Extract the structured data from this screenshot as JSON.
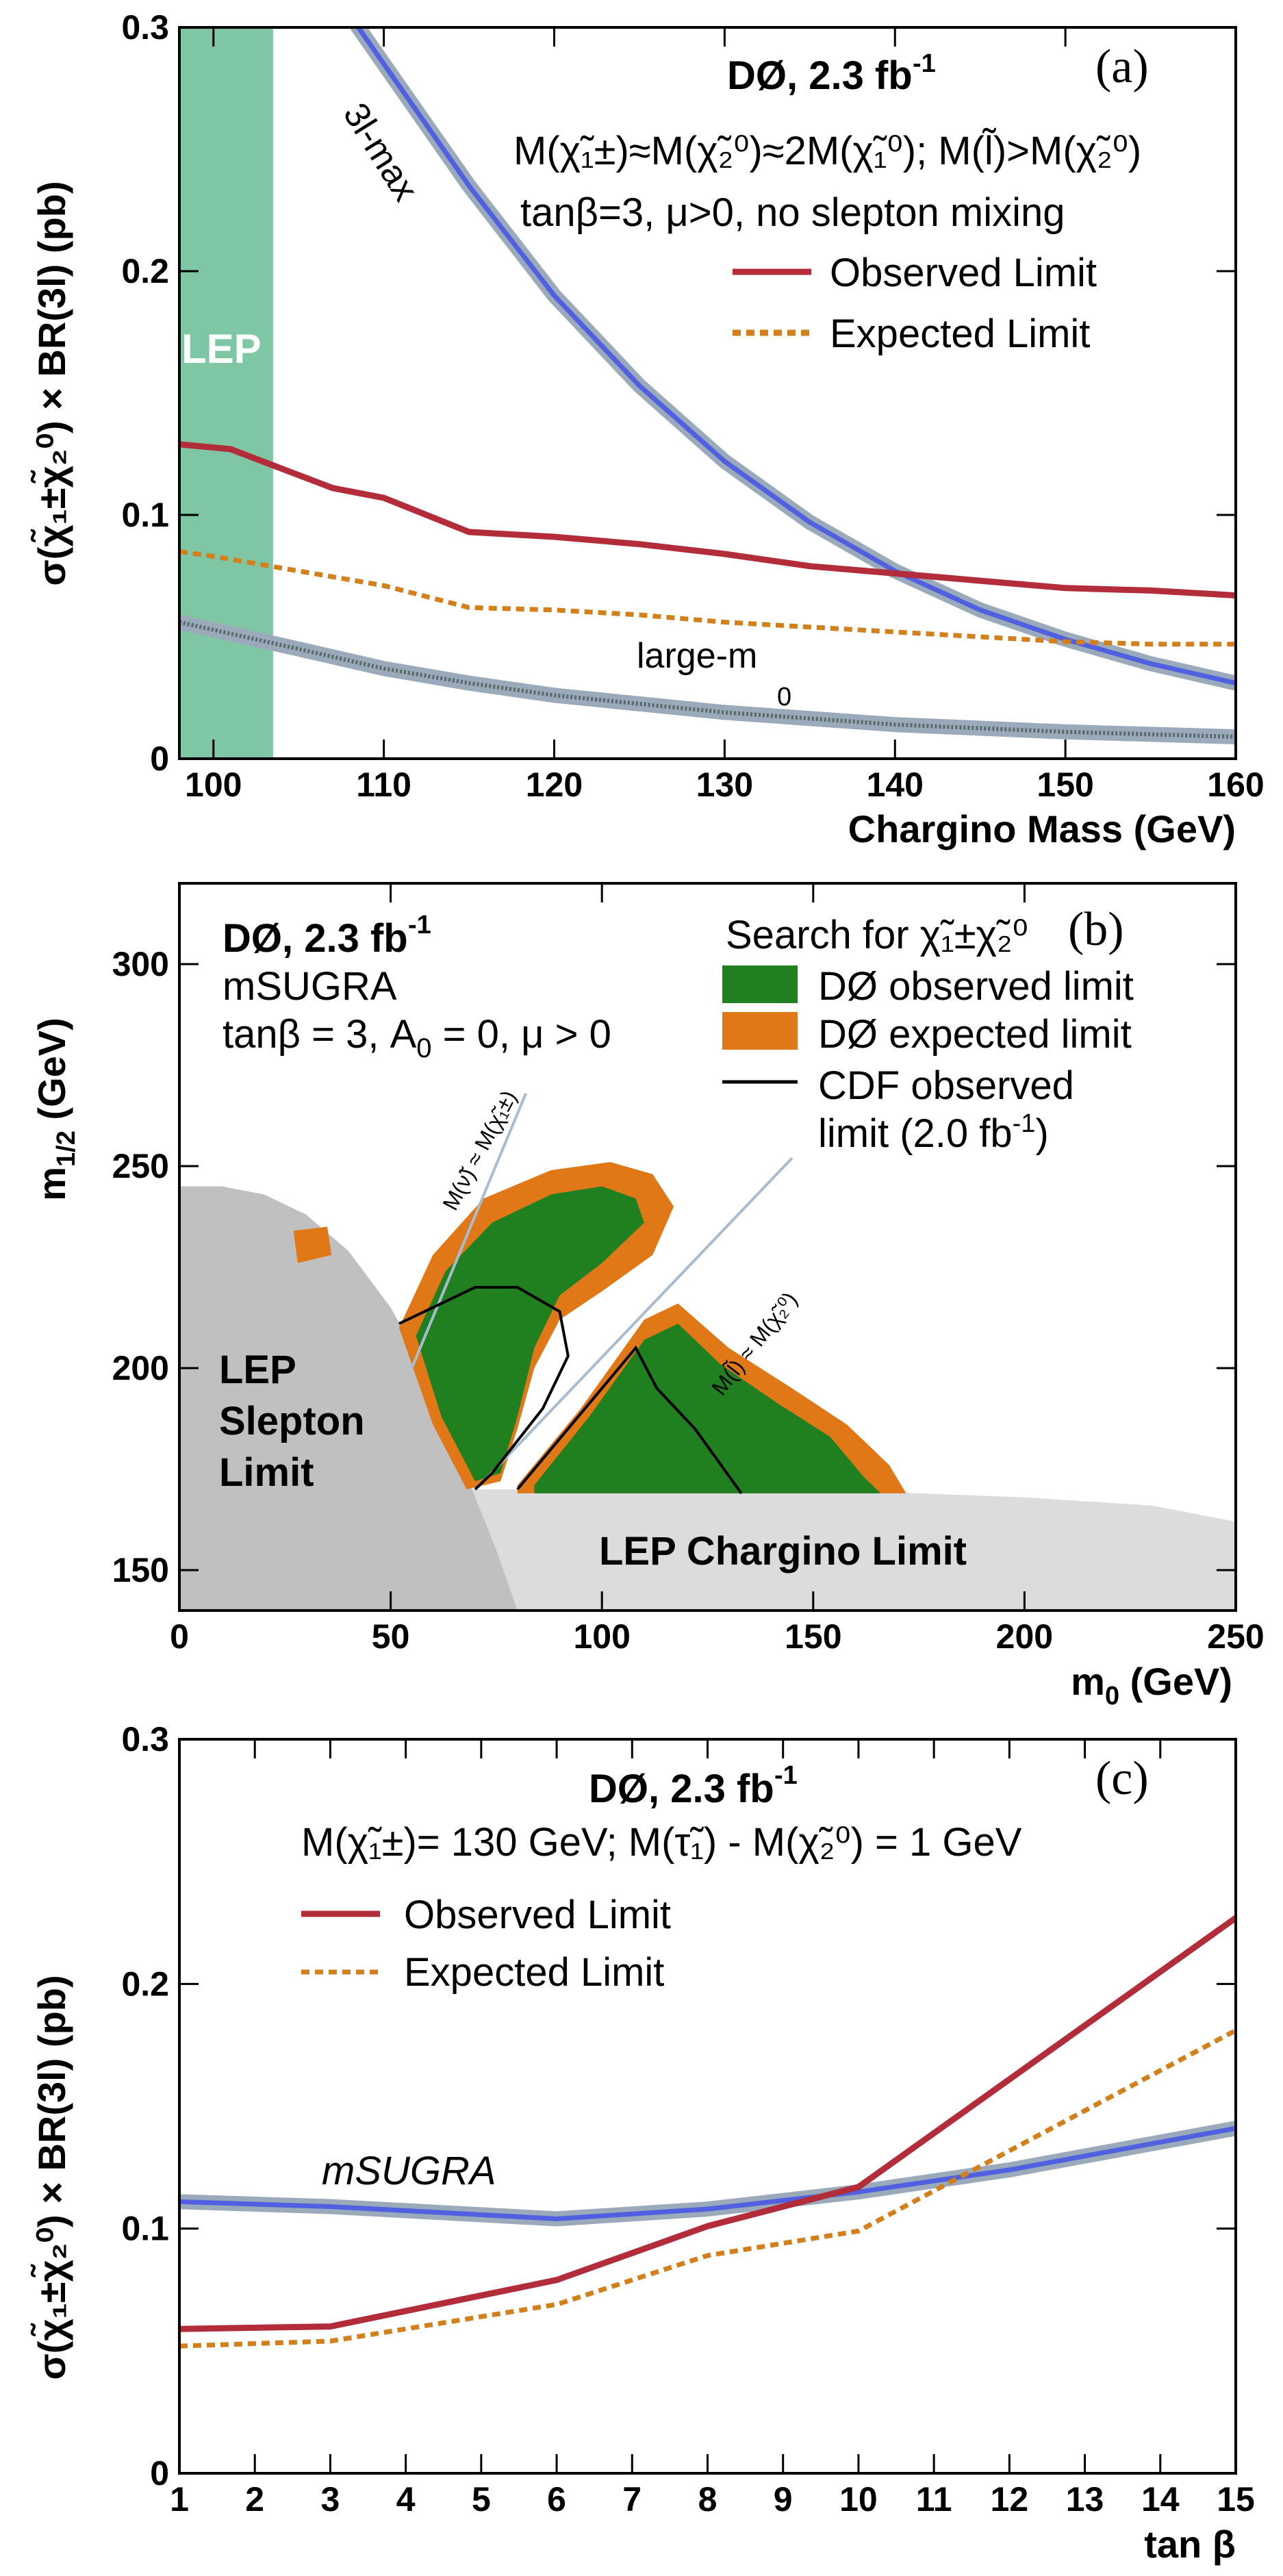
{
  "colors": {
    "observed": "#b22c3a",
    "expected": "#d2801c",
    "theory": "#5060e0",
    "theory_band": "#9aaabb",
    "lep_band": "#7fc7a4",
    "d0_observed_fill": "#208020",
    "d0_expected_fill": "#e07818",
    "lep_slepton": "#c0c0c0",
    "lep_chargino": "#dcdcdc",
    "cdf": "#000000",
    "kinematic_line": "#a8bcd0",
    "large_m0": "#5a6a6a"
  },
  "chart_data": [
    {
      "panel": "(a)",
      "type": "line",
      "header": "DØ, 2.3 fb",
      "header_sup": "-1",
      "conditions_line1": "M(χ̃₁±)≈M(χ̃₂⁰)≈2M(χ̃₁⁰); M(l̃)>M(χ̃₂⁰)",
      "conditions_line2": "tanβ=3, μ>0, no slepton mixing",
      "xlabel": "Chargino Mass (GeV)",
      "ylabel": "σ(χ̃₁±χ̃₂⁰) × BR(3l) (pb)",
      "xlim": [
        98,
        160
      ],
      "ylim": [
        0,
        0.3
      ],
      "xticks": [
        100,
        110,
        120,
        130,
        140,
        150,
        160
      ],
      "yticks": [
        0,
        0.1,
        0.2,
        0.3
      ],
      "ytick_labels": [
        "0",
        "0.1",
        "0.2",
        "0.3"
      ],
      "lep_excluded_upto": 103.5,
      "lep_label": "LEP",
      "series": [
        {
          "name": "Observed Limit",
          "style": "solid",
          "x": [
            98,
            101,
            107,
            110,
            115,
            120,
            125,
            130,
            135,
            140,
            145,
            150,
            155,
            160
          ],
          "y": [
            0.129,
            0.127,
            0.111,
            0.107,
            0.093,
            0.091,
            0.088,
            0.084,
            0.079,
            0.076,
            0.073,
            0.07,
            0.069,
            0.067
          ]
        },
        {
          "name": "Expected Limit",
          "style": "dashed",
          "x": [
            98,
            100,
            105,
            110,
            115,
            120,
            125,
            130,
            135,
            140,
            145,
            150,
            155,
            160
          ],
          "y": [
            0.085,
            0.083,
            0.077,
            0.071,
            0.062,
            0.061,
            0.059,
            0.056,
            0.054,
            0.052,
            0.05,
            0.048,
            0.047,
            0.047
          ]
        },
        {
          "name": "3l-max",
          "style": "band",
          "x": [
            108,
            110,
            115,
            120,
            125,
            130,
            135,
            140,
            145,
            150,
            155,
            160
          ],
          "y": [
            0.305,
            0.285,
            0.235,
            0.19,
            0.153,
            0.122,
            0.097,
            0.077,
            0.061,
            0.049,
            0.039,
            0.031
          ]
        },
        {
          "name": "large-m0",
          "style": "band",
          "x": [
            98,
            105,
            110,
            115,
            120,
            130,
            140,
            150,
            160
          ],
          "y": [
            0.056,
            0.045,
            0.037,
            0.031,
            0.026,
            0.019,
            0.014,
            0.011,
            0.009
          ]
        }
      ],
      "curve_labels": [
        "3l-max",
        "large-m",
        "0"
      ]
    },
    {
      "panel": "(b)",
      "type": "area",
      "header": "DØ, 2.3 fb",
      "header_sup": "-1",
      "model": "mSUGRA",
      "params": "tanβ = 3, A",
      "params_sub": "0",
      "params_tail": " = 0, μ > 0",
      "search_label": "Search for χ̃₁±χ̃₂⁰",
      "xlabel": "m",
      "xlabel_sub": "0",
      "xlabel_tail": " (GeV)",
      "ylabel": "m",
      "ylabel_sub": "1/2",
      "ylabel_tail": " (GeV)",
      "xlim": [
        0,
        250
      ],
      "ylim": [
        140,
        320
      ],
      "xticks": [
        0,
        50,
        100,
        150,
        200,
        250
      ],
      "yticks": [
        150,
        200,
        250,
        300
      ],
      "legend": [
        {
          "name": "DØ observed limit",
          "kind": "fill"
        },
        {
          "name": "DØ expected limit",
          "kind": "fill"
        },
        {
          "name": "CDF observed",
          "name2": "limit (2.0 fb",
          "name2_sup": "-1",
          "name2_tail": ")",
          "kind": "line"
        }
      ],
      "regions": [
        {
          "name": "LEP Slepton Limit",
          "lines": [
            "LEP",
            "Slepton",
            "Limit"
          ]
        },
        {
          "name": "LEP Chargino Limit",
          "lines": [
            "LEP Chargino Limit"
          ]
        }
      ],
      "kinematic_labels": [
        "M(ν̃) ≈ M(χ̃₁±)",
        "M(l̃) ≈ M(χ̃₂⁰)"
      ],
      "lep_slepton_boundary": [
        [
          0,
          245
        ],
        [
          10,
          245
        ],
        [
          20,
          243
        ],
        [
          30,
          238
        ],
        [
          40,
          229
        ],
        [
          50,
          215
        ],
        [
          58,
          200
        ],
        [
          64,
          185
        ],
        [
          70,
          168
        ],
        [
          75,
          155
        ],
        [
          80,
          140
        ]
      ],
      "lep_chargino_boundary": [
        [
          0,
          170
        ],
        [
          150,
          170
        ],
        [
          200,
          168
        ],
        [
          230,
          166
        ],
        [
          250,
          162
        ]
      ],
      "d0_expected_region_1": [
        [
          52,
          210
        ],
        [
          60,
          228
        ],
        [
          72,
          242
        ],
        [
          88,
          249
        ],
        [
          102,
          251
        ],
        [
          112,
          248
        ],
        [
          117,
          240
        ],
        [
          112,
          228
        ],
        [
          100,
          219
        ],
        [
          90,
          212
        ],
        [
          84,
          200
        ],
        [
          80,
          185
        ],
        [
          76,
          172
        ],
        [
          68,
          170
        ],
        [
          60,
          186
        ]
      ],
      "d0_observed_region_1": [
        [
          56,
          208
        ],
        [
          63,
          224
        ],
        [
          74,
          236
        ],
        [
          88,
          243
        ],
        [
          100,
          245
        ],
        [
          108,
          242
        ],
        [
          110,
          236
        ],
        [
          100,
          226
        ],
        [
          90,
          218
        ],
        [
          84,
          205
        ],
        [
          80,
          188
        ],
        [
          76,
          174
        ],
        [
          70,
          172
        ],
        [
          62,
          188
        ]
      ],
      "d0_expected_region_2": [
        [
          80,
          171
        ],
        [
          95,
          190
        ],
        [
          110,
          212
        ],
        [
          118,
          216
        ],
        [
          130,
          205
        ],
        [
          145,
          195
        ],
        [
          158,
          186
        ],
        [
          168,
          176
        ],
        [
          172,
          169
        ],
        [
          80,
          169
        ]
      ],
      "d0_observed_region_2": [
        [
          84,
          171
        ],
        [
          97,
          188
        ],
        [
          110,
          207
        ],
        [
          118,
          211
        ],
        [
          128,
          201
        ],
        [
          142,
          191
        ],
        [
          154,
          183
        ],
        [
          162,
          173
        ],
        [
          166,
          169
        ],
        [
          84,
          169
        ]
      ],
      "d0_expected_small": [
        [
          27,
          234
        ],
        [
          35,
          235
        ],
        [
          36,
          228
        ],
        [
          28,
          226
        ]
      ],
      "cdf_contour_1": [
        [
          52,
          211
        ],
        [
          70,
          220
        ],
        [
          80,
          220
        ],
        [
          90,
          214
        ],
        [
          92,
          203
        ],
        [
          86,
          190
        ],
        [
          74,
          174
        ],
        [
          70,
          170
        ]
      ],
      "cdf_contour_2": [
        [
          80,
          170
        ],
        [
          92,
          185
        ],
        [
          104,
          200
        ],
        [
          108,
          205
        ],
        [
          113,
          195
        ],
        [
          122,
          185
        ],
        [
          133,
          169
        ]
      ],
      "kinematic_line_1": [
        [
          55,
          200
        ],
        [
          82,
          268
        ]
      ],
      "kinematic_line_2": [
        [
          72,
          172
        ],
        [
          145,
          252
        ]
      ]
    },
    {
      "panel": "(c)",
      "type": "line",
      "header": "DØ, 2.3 fb",
      "header_sup": "-1",
      "conditions_line1": "M(χ̃₁±)= 130 GeV; M(τ̃₁) - M(χ̃₂⁰) = 1 GeV",
      "xlabel": "tan β",
      "ylabel": "σ(χ̃₁±χ̃₂⁰) × BR(3l) (pb)",
      "xlim": [
        1,
        15
      ],
      "ylim": [
        0,
        0.3
      ],
      "xticks": [
        1,
        2,
        3,
        4,
        5,
        6,
        7,
        8,
        9,
        10,
        11,
        12,
        13,
        14,
        15
      ],
      "yticks": [
        0,
        0.1,
        0.2,
        0.3
      ],
      "ytick_labels": [
        "0",
        "0.1",
        "0.2",
        "0.3"
      ],
      "series": [
        {
          "name": "Observed Limit",
          "style": "solid",
          "x": [
            1,
            3,
            6,
            8,
            10,
            15
          ],
          "y": [
            0.059,
            0.06,
            0.079,
            0.101,
            0.117,
            0.227
          ]
        },
        {
          "name": "Expected Limit",
          "style": "dashed",
          "x": [
            1,
            3,
            6,
            8,
            10,
            15
          ],
          "y": [
            0.052,
            0.054,
            0.069,
            0.089,
            0.099,
            0.181
          ]
        },
        {
          "name": "mSUGRA",
          "style": "band",
          "x": [
            1,
            3,
            6,
            8,
            10,
            12,
            15
          ],
          "y": [
            0.111,
            0.109,
            0.104,
            0.108,
            0.115,
            0.124,
            0.141
          ]
        }
      ],
      "curve_labels": [
        "mSUGRA"
      ]
    }
  ]
}
